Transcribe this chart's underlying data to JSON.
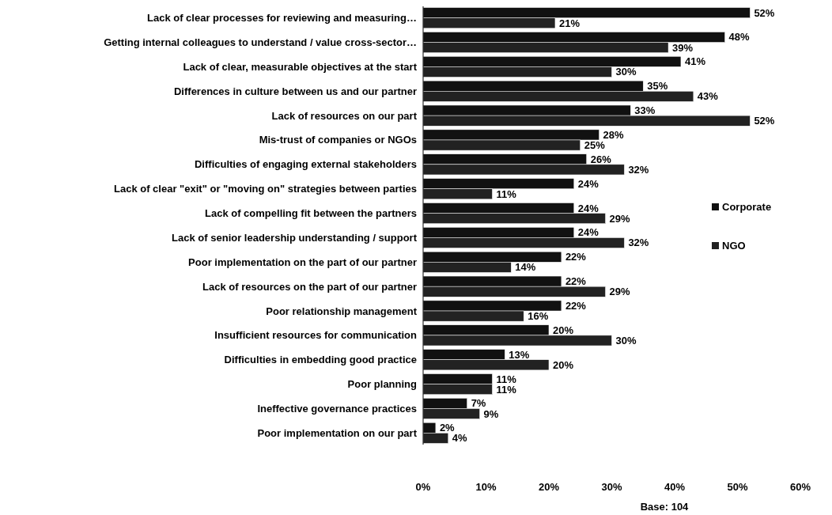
{
  "chart_data": {
    "type": "bar",
    "orientation": "horizontal",
    "categories": [
      "Lack of clear processes for reviewing and measuring…",
      "Getting internal colleagues to understand / value cross-sector…",
      "Lack of clear, measurable objectives at the start",
      "Differences in culture between us and our partner",
      "Lack of resources on our part",
      "Mis-trust of companies or NGOs",
      "Difficulties of engaging external stakeholders",
      "Lack of clear \"exit\" or \"moving on\" strategies between parties",
      "Lack of compelling fit between the partners",
      "Lack of senior leadership understanding / support",
      "Poor implementation on the part of our partner",
      "Lack of resources on the part of our partner",
      "Poor relationship management",
      "Insufficient resources for communication",
      "Difficulties in embedding good practice",
      "Poor planning",
      "Ineffective governance practices",
      "Poor implementation on our part"
    ],
    "series": [
      {
        "name": "Corporate",
        "color": "#111111",
        "values": [
          52,
          48,
          41,
          35,
          33,
          28,
          26,
          24,
          24,
          24,
          22,
          22,
          22,
          20,
          13,
          11,
          7,
          2
        ],
        "value_labels": [
          "52%",
          "48%",
          "41%",
          "35%",
          "33%",
          "28%",
          "26%",
          "24%",
          "24%",
          "24%",
          "22%",
          "22%",
          "22%",
          "20%",
          "13%",
          "11%",
          "7%",
          "2%"
        ]
      },
      {
        "name": "NGO",
        "color": "#222222",
        "values": [
          21,
          39,
          30,
          43,
          52,
          25,
          32,
          11,
          29,
          32,
          14,
          29,
          16,
          30,
          20,
          11,
          9,
          4
        ],
        "value_labels": [
          "21%",
          "39%",
          "30%",
          "43%",
          "52%",
          "25%",
          "32%",
          "11%",
          "29%",
          "32%",
          "14%",
          "29%",
          "16%",
          "30%",
          "20%",
          "11%",
          "9%",
          "4%"
        ]
      }
    ],
    "xlim": [
      0,
      60
    ],
    "xticks": [
      {
        "value": 0,
        "label": "0%"
      },
      {
        "value": 10,
        "label": "10%"
      },
      {
        "value": 20,
        "label": "20%"
      },
      {
        "value": 30,
        "label": "30%"
      },
      {
        "value": 40,
        "label": "40%"
      },
      {
        "value": 50,
        "label": "50%"
      },
      {
        "value": 60,
        "label": "60%"
      }
    ],
    "legend": "right",
    "grid": false,
    "annotations": [
      "Base: 104"
    ]
  }
}
